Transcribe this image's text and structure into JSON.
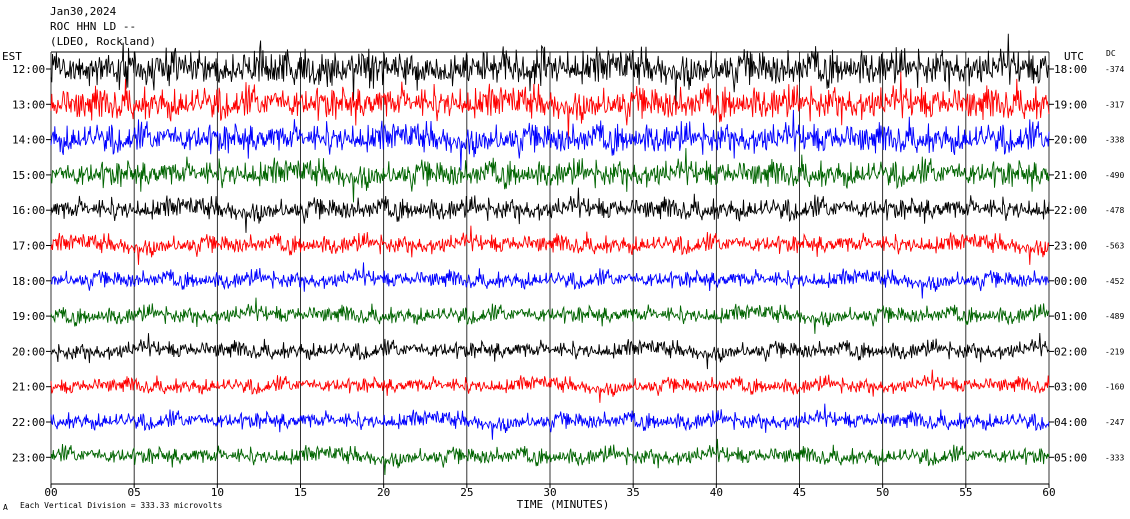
{
  "chart_data": {
    "type": "line",
    "title_lines": [
      "Jan30,2024",
      "ROC HHN LD --",
      "(LDEO, Rockland)"
    ],
    "left_axis_title": "EST",
    "right_axis_title": "UTC",
    "dc_title": "DC",
    "xlabel": "TIME (MINUTES)",
    "x_ticks": [
      "00",
      "05",
      "10",
      "15",
      "20",
      "25",
      "30",
      "35",
      "40",
      "45",
      "50",
      "55",
      "60"
    ],
    "xlim": [
      0,
      60
    ],
    "footer": "Each Vertical Division =  333.33 microvolts",
    "footer_mark": "A",
    "colors": [
      "#000000",
      "#ff0000",
      "#0000ff",
      "#006400"
    ],
    "traces": [
      {
        "est": "12:00",
        "utc": "18:00",
        "dc": "-374"
      },
      {
        "est": "13:00",
        "utc": "19:00",
        "dc": "-317"
      },
      {
        "est": "14:00",
        "utc": "20:00",
        "dc": "-338"
      },
      {
        "est": "15:00",
        "utc": "21:00",
        "dc": "-490"
      },
      {
        "est": "16:00",
        "utc": "22:00",
        "dc": "-478"
      },
      {
        "est": "17:00",
        "utc": "23:00",
        "dc": "-563"
      },
      {
        "est": "18:00",
        "utc": "00:00",
        "dc": "-452"
      },
      {
        "est": "19:00",
        "utc": "01:00",
        "dc": "-489"
      },
      {
        "est": "20:00",
        "utc": "02:00",
        "dc": "-219"
      },
      {
        "est": "21:00",
        "utc": "03:00",
        "dc": "-160"
      },
      {
        "est": "22:00",
        "utc": "04:00",
        "dc": "-247"
      },
      {
        "est": "23:00",
        "utc": "05:00",
        "dc": "-333"
      }
    ]
  }
}
